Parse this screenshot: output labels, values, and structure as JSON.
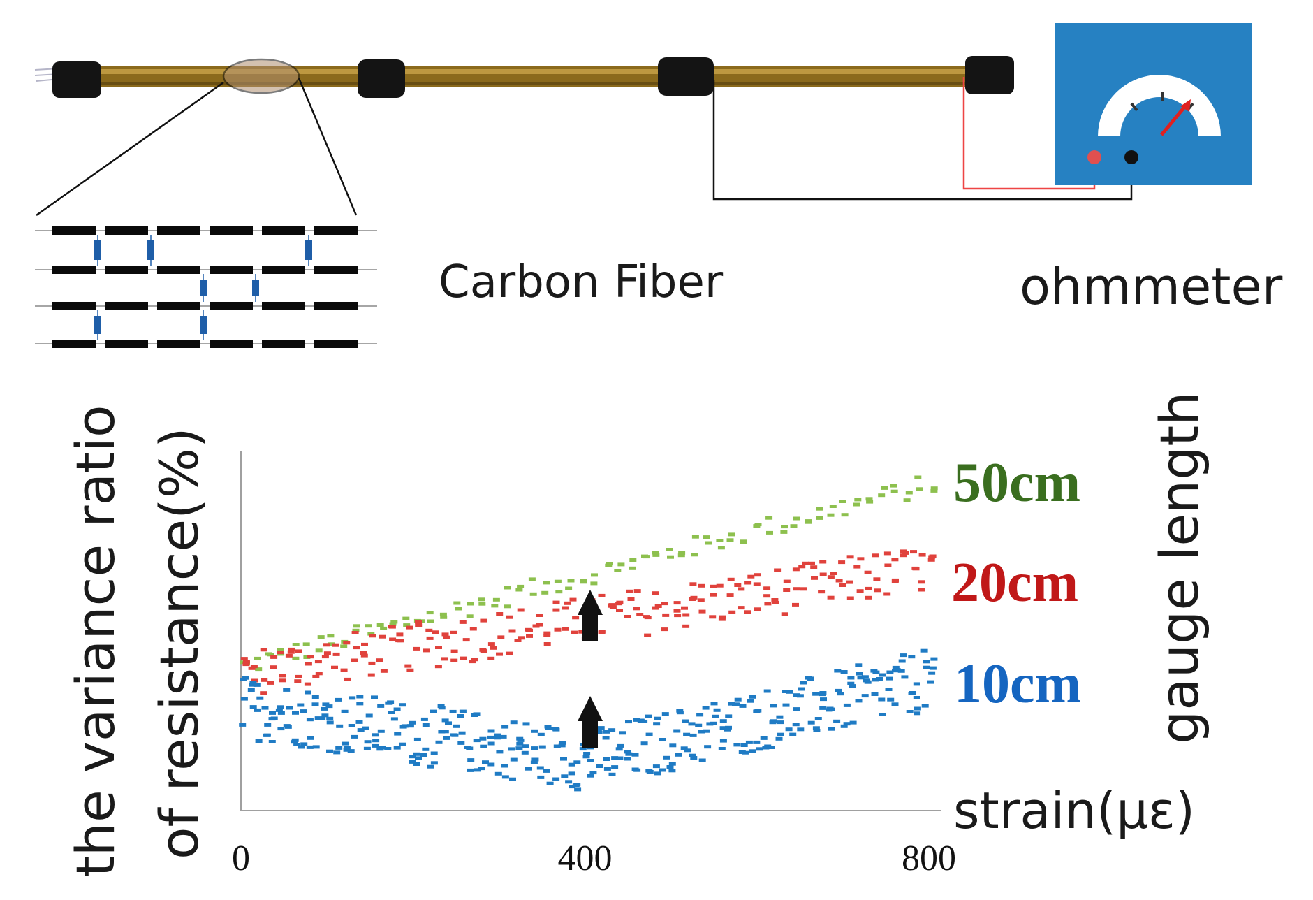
{
  "labels": {
    "carbon_fiber": "Carbon Fiber",
    "ohmmeter": "ohmmeter",
    "gauge_length": "gauge length"
  },
  "colors": {
    "series_50": "#8dc04e",
    "series_20": "#e0423c",
    "series_10": "#1f7bc4",
    "label_50": "#3a6e1f",
    "label_20": "#c01818",
    "label_10": "#1565c0",
    "meter_bg": "#2681c2",
    "rod": "#8a6a1a"
  },
  "chart_data": {
    "type": "scatter",
    "title": "",
    "xlabel": "strain(με)",
    "ylabel_line1": "the variance ratio",
    "ylabel_line2": "of resistance(%)",
    "xlim": [
      0,
      800
    ],
    "ylim": [
      0,
      100
    ],
    "xticks": [
      "0",
      "400",
      "800"
    ],
    "grid": false,
    "series": [
      {
        "name": "50cm",
        "start": [
          0,
          42
        ],
        "end": [
          800,
          94
        ],
        "jitter": 3
      },
      {
        "name": "20cm",
        "start": [
          0,
          40
        ],
        "end": [
          800,
          70
        ],
        "jitter": 7
      },
      {
        "name": "10cm",
        "start": [
          0,
          30
        ],
        "mid": [
          400,
          15
        ],
        "end": [
          800,
          38
        ],
        "jitter": 9
      }
    ],
    "annotations": [
      "arrow-up at x=400 between 10cm and 20cm",
      "arrow-up at x=400 between 20cm and 50cm"
    ]
  }
}
